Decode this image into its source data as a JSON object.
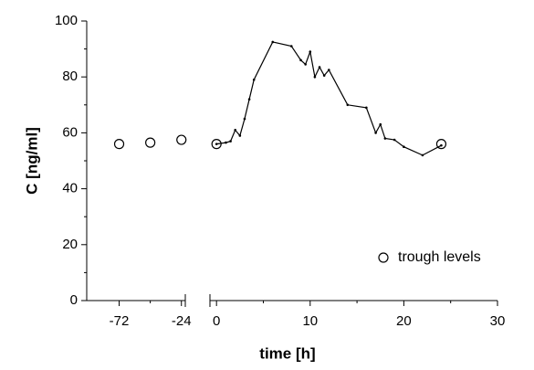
{
  "chart_data": [
    {
      "type": "scatter",
      "ylabel": "C [ng/ml]",
      "xlim": [
        -97,
        -21
      ],
      "xticks": [
        -72,
        -24
      ],
      "xminor": [
        -48
      ],
      "ylim": [
        0,
        100
      ],
      "yticks": [
        0,
        20,
        40,
        60,
        80,
        100
      ],
      "yminor": [
        10,
        30,
        50,
        70,
        90
      ],
      "series": [
        {
          "type": "scatter",
          "color": "#000000",
          "x": [
            -72,
            -48,
            -24
          ],
          "values": [
            56,
            56.5,
            57.5
          ]
        }
      ]
    },
    {
      "type": "line",
      "xlabel": "time [h]",
      "xlim": [
        -0.7,
        30
      ],
      "xticks": [
        0,
        10,
        20,
        30
      ],
      "xminor": [
        5,
        15,
        25
      ],
      "ylim": [
        0,
        100
      ],
      "legend": "lower right",
      "series": [
        {
          "type": "line",
          "color": "#000000",
          "x": [
            0,
            1,
            1.5,
            2,
            2.5,
            3,
            3.5,
            4,
            6,
            8,
            9,
            9.5,
            10,
            10.5,
            11,
            11.5,
            12,
            14,
            16,
            17,
            17.5,
            18,
            19,
            20,
            22,
            24
          ],
          "values": [
            56,
            56.5,
            57,
            61,
            59,
            65,
            72,
            79,
            92.5,
            91,
            86,
            84.5,
            89,
            80,
            83.5,
            80.5,
            82.5,
            70,
            69,
            60,
            63,
            58,
            57.5,
            55,
            52,
            55.5
          ]
        },
        {
          "type": "scatter",
          "name": "trough levels",
          "color": "#000000",
          "x": [
            0,
            24
          ],
          "values": [
            56,
            56
          ]
        }
      ]
    }
  ]
}
